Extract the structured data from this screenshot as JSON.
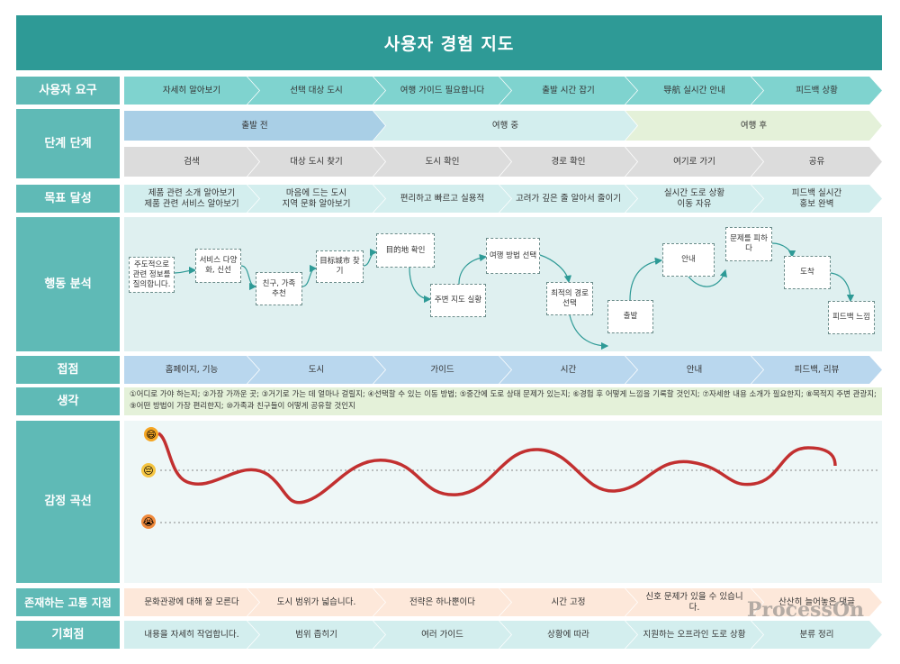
{
  "title": "사용자 경험 지도",
  "rows": {
    "needs": "사용자 요구",
    "stages": "단계 단계",
    "goals": "목표 달성",
    "actions": "행동 분석",
    "touchpoints": "접점",
    "thoughts": "생각",
    "emotion": "감정 곡선",
    "pain": "존재하는 고통 지점",
    "opportunity": "기회점"
  },
  "needs": [
    "자세히 알아보기",
    "선택 대상 도시",
    "여행 가이드 필요합니다",
    "출발 시간 잡기",
    "导航 실시간 안내",
    "피드백 상황"
  ],
  "phases": [
    "출발 전",
    "여행 중",
    "여행 후"
  ],
  "steps": [
    "검색",
    "대상 도시 찾기",
    "도시 확인",
    "경로 확인",
    "여기로 가기",
    "공유"
  ],
  "goals": [
    "제품 관련 소개 알아보기\n제품 관련 서비스 알아보기",
    "마음에 드는 도시\n지역 문화 알아보기",
    "편리하고 빠르고 실용적",
    "고려가 깊은 줄 알아서 줄이기",
    "실시간 도로 상황\n이동 자유",
    "피드백 실시간\n홍보 완벽"
  ],
  "action_nodes": [
    "주도적으로 관련 정보를 질의합니다.",
    "서비스 다양화, 신선",
    "친구, 가족 추천",
    "目标城市 찾기",
    "目的地 확인",
    "주변 지도 실황",
    "여행 방법 선택",
    "최적의 경로 선택",
    "출발",
    "안내",
    "문제를 피하다",
    "도착",
    "피드백 느낌"
  ],
  "touchpoints": [
    "홈페이지, 기능",
    "도시",
    "가이드",
    "시간",
    "안내",
    "피드백, 리뷰"
  ],
  "thoughts_text": "①어디로 가야 하는지; ②가장 가까운 곳; ③거기로 가는 데 얼마나 걸릴지; ④선택할 수 있는 이동 방법; ⑤중간에 도로 상태 문제가 있는지; ⑥경험 후 어떻게 느낌을 기록할 것인지; ⑦자세한 내용 소개가 필요한지; ⑧목적지 주변 관광지; ⑨어떤 방법이 가장 편리한지; ⑩가족과 친구들이 어떻게 공유할 것인지",
  "emotion_levels": [
    {
      "icon": "happy-face",
      "emoji": "😄",
      "color": "#f5a623"
    },
    {
      "icon": "neutral-face",
      "emoji": "😔",
      "color": "#f5c542"
    },
    {
      "icon": "crying-face",
      "emoji": "😭",
      "color": "#f08a3c"
    }
  ],
  "pain_points": [
    "문화관광에 대해 잘 모른다",
    "도시 범위가 넓습니다.",
    "전략은 하나뿐이다",
    "시간 고정",
    "신호 문제가 있을 수 있습니다.",
    "산산히 늘어놓은 댓글"
  ],
  "opportunities": [
    "내용을 자세히 작업합니다.",
    "범위 좁히기",
    "여러 가이드",
    "상황에 따라",
    "지원하는 오프라인 도로 상황",
    "분류 정리"
  ],
  "watermark": "ProcessOn",
  "colors": {
    "header": "#2e9a96",
    "label": "#5fbab6",
    "needs": "#7fd3cf",
    "phase_before": "#a9cfe6",
    "phase_during": "#d3eeee",
    "phase_after": "#e4f1d9",
    "steps": "#dcdcdc",
    "goals": "#d3eeee",
    "actions_bg": "#dff0f0",
    "touch": "#b9d7ee",
    "pain": "#fde8da",
    "opp": "#d3eeee",
    "curve": "#c23030"
  }
}
